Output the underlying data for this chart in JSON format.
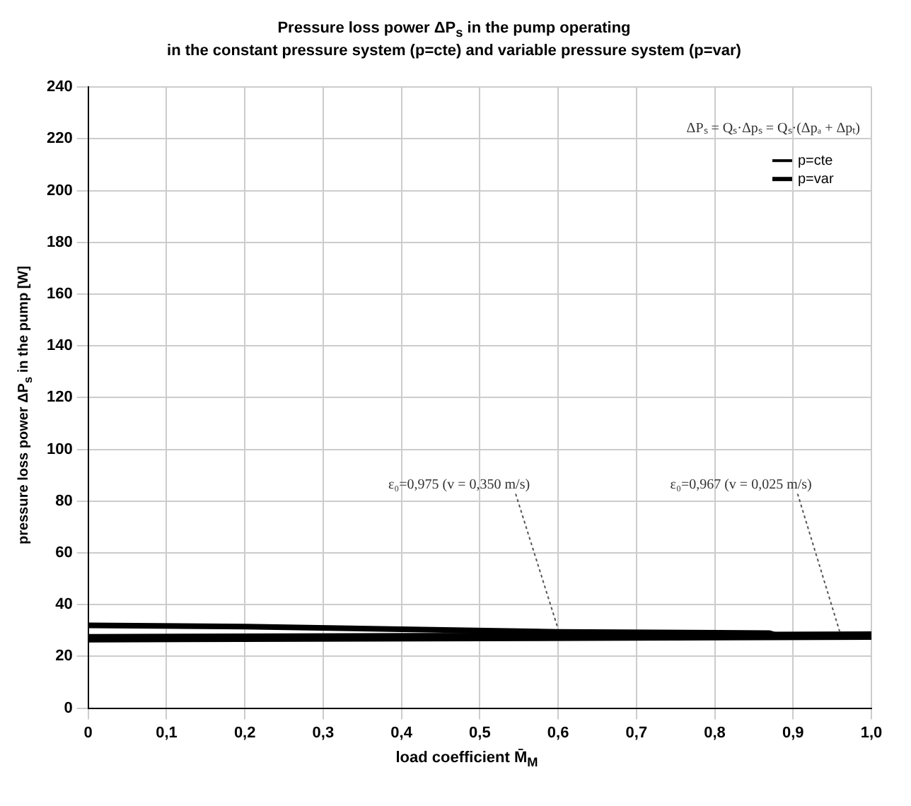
{
  "chart_data": {
    "type": "line",
    "title": "Pressure loss power ΔP$_{s}$ in the pump operating",
    "subtitle": "in the constant pressure system (p=cte) and variable pressure system (p=var)",
    "xlabel": "load coefficient M̄$_{M}$",
    "ylabel": "pressure loss power ΔP$_{s}$ in the pump [W]",
    "series": [
      {
        "name": "p=cte",
        "color": "#000000",
        "x": [
          0,
          0.2,
          0.4,
          0.6,
          0.87,
          0.88,
          1.0
        ],
        "values": [
          32,
          31.5,
          30.5,
          29.5,
          29,
          28,
          28
        ]
      },
      {
        "name": "p=var",
        "color": "#000000",
        "x": [
          0,
          0.5,
          1.0
        ],
        "values": [
          27,
          27.5,
          28
        ]
      }
    ],
    "xlim": [
      0,
      1
    ],
    "xticks": [
      0,
      {
        "value": 0.1,
        "label": "0,1"
      },
      {
        "value": 0.2,
        "label": "0,2"
      },
      {
        "value": 0.3,
        "label": "0,3"
      },
      {
        "value": 0.4,
        "label": "0,4"
      },
      {
        "value": 0.5,
        "label": "0,5"
      },
      {
        "value": 0.6,
        "label": "0,6"
      },
      {
        "value": 0.7,
        "label": "0,7"
      },
      {
        "value": 0.8,
        "label": "0,8"
      },
      {
        "value": 0.9,
        "label": "0,9"
      },
      {
        "value": 1,
        "label": "1,0"
      }
    ],
    "ylim": [
      0,
      240
    ],
    "yticks": [
      0,
      20,
      40,
      60,
      80,
      100,
      120,
      140,
      160,
      180,
      200,
      220,
      240
    ],
    "annotations": [
      "ΔPₛ = Qₛ·Δpₛ = Qₛ·(Δpₐ + Δpₜ)",
      {
        "text": "ε₀=0,975 (v = 0,350 m/s)",
        "x": 0.6,
        "y": 29.5
      },
      {
        "text": "ε₀=0,967 (v = 0,025 m/s)",
        "x": 0.96,
        "y": 28
      }
    ],
    "grid": true,
    "legend": "top right",
    "marker": "none",
    "line_style": "solid"
  }
}
